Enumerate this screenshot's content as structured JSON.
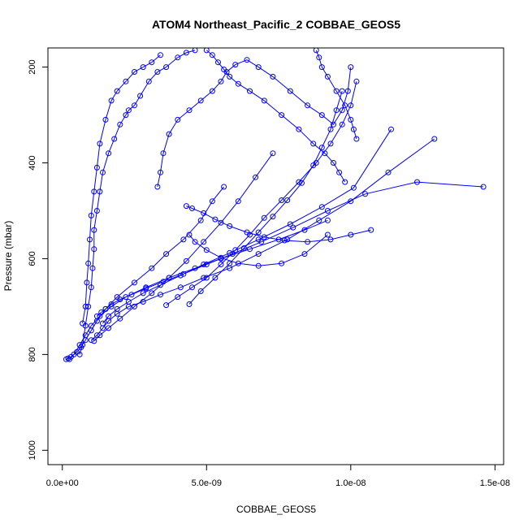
{
  "chart_data": {
    "type": "line",
    "title": "ATOM4 Northeast_Pacific_2 COBBAE_GEOS5",
    "xlabel": "COBBAE_GEOS5",
    "ylabel": "Pressure (mbar)",
    "xlim": [
      -5e-10,
      1.53e-08
    ],
    "ylim": [
      1030,
      160
    ],
    "y_reversed": true,
    "grid": false,
    "x_ticks": [
      0,
      5e-09,
      1e-08,
      1.5e-08
    ],
    "x_tick_labels": [
      "0.0e+00",
      "5.0e-09",
      "1.0e-08",
      "1.5e-08"
    ],
    "y_ticks": [
      200,
      400,
      600,
      800,
      1000
    ],
    "y_tick_labels": [
      "200",
      "400",
      "600",
      "800",
      "1000"
    ],
    "color": "#0000ff",
    "series": [
      {
        "x": [
          1.3e-10,
          2e-10,
          3e-10,
          5e-10,
          6.5e-10,
          8e-10,
          1e-09,
          1.2e-09,
          1.5e-09,
          1.9e-09,
          2.5e-09,
          3.1e-09,
          3.6e-09,
          4.2e-09,
          4.8e-09,
          5.2e-09,
          5.6e-09
        ],
        "y": [
          810,
          808,
          805,
          795,
          785,
          770,
          750,
          730,
          705,
          680,
          650,
          620,
          590,
          560,
          520,
          480,
          450
        ]
      },
      {
        "x": [
          2.5e-10,
          4e-10,
          6e-10,
          8e-10,
          1e-09,
          1.3e-09,
          1.7e-09,
          2.2e-09,
          2.9e-09,
          3.7e-09,
          4.6e-09,
          5.5e-09,
          6.5e-09,
          7.5e-09,
          8.4e-09,
          9.2e-09
        ],
        "y": [
          810,
          800,
          780,
          760,
          740,
          720,
          700,
          680,
          660,
          640,
          620,
          600,
          580,
          560,
          540,
          520
        ]
      },
      {
        "x": [
          6e-10,
          7e-10,
          8e-10,
          9e-10,
          1e-09,
          1.05e-09,
          1.1e-09,
          1.1e-09,
          1.2e-09,
          1.3e-09,
          1.4e-09,
          1.6e-09,
          1.8e-09,
          2e-09,
          2.2e-09,
          2.3e-09,
          2.5e-09,
          2.7e-09,
          3e-09,
          3.3e-09,
          3.6e-09,
          4e-09,
          4.3e-09,
          4.6e-09
        ],
        "y": [
          800,
          780,
          740,
          700,
          660,
          620,
          580,
          540,
          500,
          460,
          420,
          380,
          350,
          320,
          300,
          290,
          280,
          260,
          230,
          210,
          200,
          180,
          170,
          165
        ]
      },
      {
        "x": [
          7e-10,
          8e-10,
          8.5e-10,
          9e-10,
          9.5e-10,
          1e-09,
          1.1e-09,
          1.2e-09,
          1.3e-09,
          1.5e-09,
          1.7e-09,
          1.9e-09,
          2.2e-09,
          2.5e-09,
          2.8e-09,
          3.1e-09,
          3.4e-09
        ],
        "y": [
          735,
          700,
          650,
          610,
          560,
          510,
          460,
          410,
          360,
          310,
          270,
          250,
          230,
          210,
          200,
          190,
          175
        ]
      },
      {
        "x": [
          1e-09,
          1.2e-09,
          1.4e-09,
          1.6e-09,
          1.9e-09,
          2.3e-09,
          2.8e-09,
          3.4e-09,
          4.1e-09,
          4.9e-09,
          5.8e-09,
          6.8e-09,
          7.8e-09,
          8.9e-09,
          1e-08,
          1.13e-08,
          1.29e-08
        ],
        "y": [
          770,
          760,
          745,
          730,
          715,
          700,
          690,
          675,
          660,
          640,
          620,
          590,
          560,
          520,
          480,
          420,
          350
        ]
      },
      {
        "x": [
          1.2e-09,
          1.35e-09,
          1.5e-09,
          1.7e-09,
          2e-09,
          2.4e-09,
          2.9e-09,
          3.5e-09,
          4.2e-09,
          5e-09,
          5.9e-09,
          6.9e-09,
          8e-09,
          9.2e-09,
          1.05e-08,
          1.23e-08,
          1.46e-08
        ],
        "y": [
          720,
          712,
          705,
          695,
          685,
          675,
          662,
          648,
          632,
          612,
          590,
          565,
          535,
          500,
          465,
          440,
          450
        ]
      },
      {
        "x": [
          1.4e-09,
          1.6e-09,
          1.9e-09,
          2.3e-09,
          2.8e-09,
          3.4e-09,
          4.1e-09,
          4.9e-09,
          5.8e-09,
          6.8e-09,
          7.9e-09,
          9e-09,
          1.01e-08,
          1.14e-08
        ],
        "y": [
          735,
          720,
          705,
          690,
          672,
          655,
          635,
          612,
          588,
          560,
          528,
          492,
          452,
          330
        ]
      },
      {
        "x": [
          1.1e-09,
          1.3e-09,
          1.6e-09,
          2e-09,
          2.5e-09,
          3.1e-09,
          3.7e-09,
          4.3e-09,
          4.9e-09,
          5.5e-09,
          6.1e-09,
          6.7e-09,
          7.3e-09
        ],
        "y": [
          772,
          760,
          745,
          725,
          700,
          672,
          640,
          605,
          565,
          525,
          480,
          430,
          380
        ]
      },
      {
        "x": [
          3.3e-09,
          3.4e-09,
          3.5e-09,
          3.7e-09,
          4e-09,
          4.4e-09,
          4.8e-09,
          5.2e-09,
          5.5e-09,
          5.7e-09,
          6e-09,
          6.4e-09,
          6.8e-09,
          7.3e-09,
          7.9e-09,
          8.5e-09,
          9e-09,
          9.4e-09,
          9.7e-09,
          9.9e-09,
          1e-08
        ],
        "y": [
          450,
          420,
          380,
          340,
          310,
          290,
          270,
          250,
          230,
          210,
          195,
          185,
          200,
          220,
          250,
          280,
          300,
          320,
          290,
          250,
          200
        ]
      },
      {
        "x": [
          3.6e-09,
          4e-09,
          4.5e-09,
          5e-09,
          5.5e-09,
          6e-09,
          6.5e-09,
          7e-09,
          7.6e-09,
          8.2e-09,
          8.8e-09,
          9.3e-09,
          9.7e-09,
          1e-08,
          1.02e-08
        ],
        "y": [
          697,
          680,
          660,
          640,
          612,
          582,
          550,
          515,
          478,
          440,
          400,
          360,
          320,
          280,
          230
        ]
      },
      {
        "x": [
          4.4e-09,
          4.8e-09,
          5.3e-09,
          5.8e-09,
          6.3e-09,
          6.8e-09,
          7.3e-09,
          7.8e-09,
          8.3e-09,
          8.7e-09,
          9e-09,
          9.3e-09,
          9.5e-09,
          9.7e-09
        ],
        "y": [
          695,
          668,
          640,
          610,
          578,
          545,
          512,
          478,
          442,
          405,
          368,
          330,
          290,
          250
        ]
      },
      {
        "x": [
          4.3e-09,
          4.5e-09,
          4.9e-09,
          5.3e-09,
          5.8e-09,
          6.4e-09,
          7e-09,
          7.7e-09,
          8.5e-09,
          9.3e-09,
          1e-08,
          1.07e-08
        ],
        "y": [
          490,
          495,
          505,
          518,
          532,
          545,
          555,
          562,
          565,
          560,
          550,
          540
        ]
      },
      {
        "x": [
          4.4e-09,
          4.6e-09,
          5e-09,
          5.5e-09,
          6.1e-09,
          6.8e-09,
          7.6e-09,
          8.4e-09,
          9.2e-09
        ],
        "y": [
          550,
          565,
          582,
          598,
          610,
          615,
          610,
          590,
          550
        ]
      },
      {
        "x": [
          5e-09,
          5.2e-09,
          5.4e-09,
          5.6e-09,
          5.8e-09,
          6.1e-09,
          6.5e-09,
          7e-09,
          7.6e-09,
          8.2e-09,
          8.7e-09,
          9.1e-09,
          9.4e-09,
          9.6e-09,
          9.8e-09
        ],
        "y": [
          165,
          175,
          190,
          205,
          220,
          235,
          250,
          270,
          300,
          330,
          360,
          380,
          400,
          420,
          440
        ]
      },
      {
        "x": [
          8.8e-09,
          8.9e-09,
          9e-09,
          9.2e-09,
          9.5e-09,
          9.8e-09,
          1e-08,
          1.01e-08,
          1.02e-08
        ],
        "y": [
          165,
          180,
          200,
          220,
          250,
          280,
          310,
          330,
          350
        ]
      }
    ]
  }
}
